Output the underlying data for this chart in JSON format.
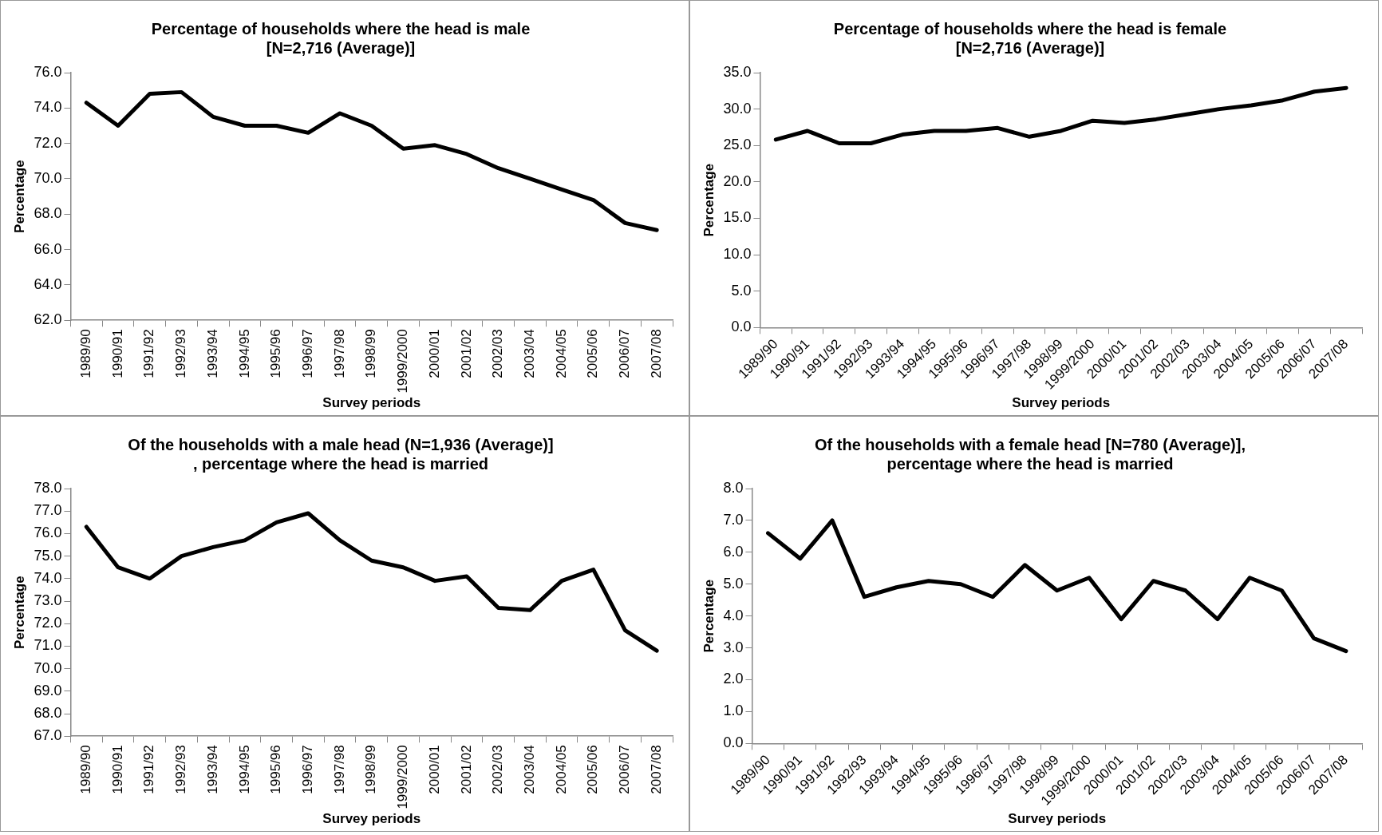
{
  "chart_data": [
    {
      "type": "line",
      "title": "Percentage of households where the head is male\n[N=2,716 (Average)]",
      "xlabel": "Survey periods",
      "ylabel": "Percentage",
      "categories": [
        "1989/90",
        "1990/91",
        "1991/92",
        "1992/93",
        "1993/94",
        "1994/95",
        "1995/96",
        "1996/97",
        "1997/98",
        "1998/99",
        "1999/2000",
        "2000/01",
        "2001/02",
        "2002/03",
        "2003/04",
        "2004/05",
        "2005/06",
        "2006/07",
        "2007/08"
      ],
      "series": [
        {
          "color": "#000000",
          "values": [
            74.3,
            73.0,
            74.8,
            74.9,
            73.5,
            73.0,
            73.0,
            72.6,
            73.7,
            73.0,
            71.7,
            71.9,
            71.4,
            70.6,
            70.0,
            69.4,
            68.8,
            67.5,
            67.1
          ]
        }
      ],
      "ylim": [
        62,
        76
      ],
      "yticks": [
        {
          "value": 62,
          "label": "62.0"
        },
        {
          "value": 64,
          "label": "64.0"
        },
        {
          "value": 66,
          "label": "66.0"
        },
        {
          "value": 68,
          "label": "68.0"
        },
        {
          "value": 70,
          "label": "70.0"
        },
        {
          "value": 72,
          "label": "72.0"
        },
        {
          "value": 74,
          "label": "74.0"
        },
        {
          "value": 76,
          "label": "76.0"
        }
      ]
    },
    {
      "type": "line",
      "title": "Percentage of households where the head is female\n[N=2,716 (Average)]",
      "xlabel": "Survey periods",
      "ylabel": "Percentage",
      "categories": [
        "1989/90",
        "1990/91",
        "1991/92",
        "1992/93",
        "1993/94",
        "1994/95",
        "1995/96",
        "1996/97",
        "1997/98",
        "1998/99",
        "1999/2000",
        "2000/01",
        "2001/02",
        "2002/03",
        "2003/04",
        "2004/05",
        "2005/06",
        "2006/07",
        "2007/08"
      ],
      "series": [
        {
          "color": "#000000",
          "values": [
            25.8,
            27.0,
            25.3,
            25.3,
            26.5,
            27.0,
            27.0,
            27.4,
            26.2,
            27.0,
            28.4,
            28.1,
            28.6,
            29.3,
            30.0,
            30.5,
            31.2,
            32.4,
            32.9
          ]
        }
      ],
      "ylim": [
        0,
        35
      ],
      "yticks": [
        {
          "value": 0,
          "label": "0.0"
        },
        {
          "value": 5,
          "label": "5.0"
        },
        {
          "value": 10,
          "label": "10.0"
        },
        {
          "value": 15,
          "label": "15.0"
        },
        {
          "value": 20,
          "label": "20.0"
        },
        {
          "value": 25,
          "label": "25.0"
        },
        {
          "value": 30,
          "label": "30.0"
        },
        {
          "value": 35,
          "label": "35.0"
        }
      ]
    },
    {
      "type": "line",
      "title": "Of the households with a male head (N=1,936 (Average)]\n, percentage where the head is married",
      "xlabel": "Survey periods",
      "ylabel": "Percentage",
      "categories": [
        "1989/90",
        "1990/91",
        "1991/92",
        "1992/93",
        "1993/94",
        "1994/95",
        "1995/96",
        "1996/97",
        "1997/98",
        "1998/99",
        "1999/2000",
        "2000/01",
        "2001/02",
        "2002/03",
        "2003/04",
        "2004/05",
        "2005/06",
        "2006/07",
        "2007/08"
      ],
      "series": [
        {
          "color": "#000000",
          "values": [
            76.3,
            74.5,
            74.0,
            75.0,
            75.4,
            75.7,
            76.5,
            76.9,
            75.7,
            74.8,
            74.5,
            73.9,
            74.1,
            72.7,
            72.6,
            73.9,
            74.4,
            71.7,
            70.8
          ]
        }
      ],
      "ylim": [
        67,
        78
      ],
      "yticks": [
        {
          "value": 67,
          "label": "67.0"
        },
        {
          "value": 68,
          "label": "68.0"
        },
        {
          "value": 69,
          "label": "69.0"
        },
        {
          "value": 70,
          "label": "70.0"
        },
        {
          "value": 71,
          "label": "71.0"
        },
        {
          "value": 72,
          "label": "72.0"
        },
        {
          "value": 73,
          "label": "73.0"
        },
        {
          "value": 74,
          "label": "74.0"
        },
        {
          "value": 75,
          "label": "75.0"
        },
        {
          "value": 76,
          "label": "76.0"
        },
        {
          "value": 77,
          "label": "77.0"
        },
        {
          "value": 78,
          "label": "78.0"
        }
      ]
    },
    {
      "type": "line",
      "title": "Of the households with a female head [N=780 (Average)],\npercentage where the head is married",
      "xlabel": "Survey periods",
      "ylabel": "Percentage",
      "categories": [
        "1989/90",
        "1990/91",
        "1991/92",
        "1992/93",
        "1993/94",
        "1994/95",
        "1995/96",
        "1996/97",
        "1997/98",
        "1998/99",
        "1999/2000",
        "2000/01",
        "2001/02",
        "2002/03",
        "2003/04",
        "2004/05",
        "2005/06",
        "2006/07",
        "2007/08"
      ],
      "series": [
        {
          "color": "#000000",
          "values": [
            6.6,
            5.8,
            7.0,
            4.6,
            4.9,
            5.1,
            5.0,
            4.6,
            5.6,
            4.8,
            5.2,
            3.9,
            5.1,
            4.8,
            3.9,
            5.2,
            4.8,
            3.3,
            2.9
          ]
        }
      ],
      "ylim": [
        0,
        8
      ],
      "yticks": [
        {
          "value": 0,
          "label": "0.0"
        },
        {
          "value": 1,
          "label": "1.0"
        },
        {
          "value": 2,
          "label": "2.0"
        },
        {
          "value": 3,
          "label": "3.0"
        },
        {
          "value": 4,
          "label": "4.0"
        },
        {
          "value": 5,
          "label": "5.0"
        },
        {
          "value": 6,
          "label": "6.0"
        },
        {
          "value": 7,
          "label": "7.0"
        },
        {
          "value": 8,
          "label": "8.0"
        }
      ]
    }
  ]
}
